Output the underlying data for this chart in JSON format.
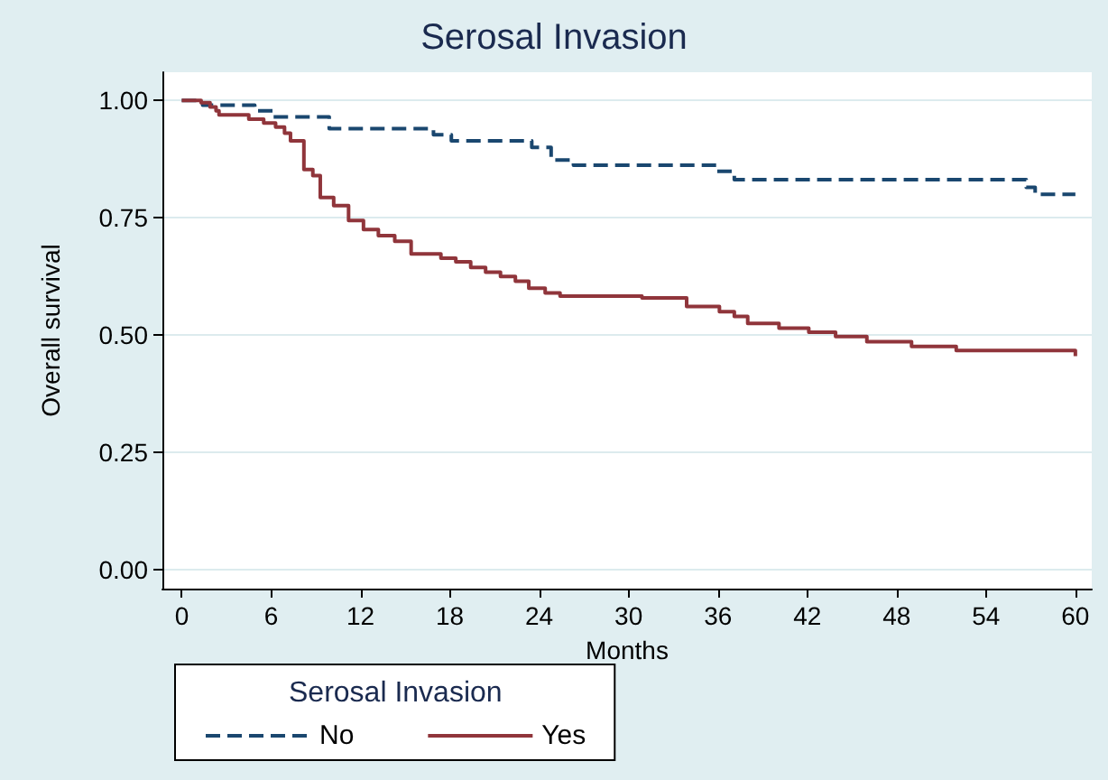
{
  "chart_data": {
    "type": "step",
    "title": "Serosal Invasion",
    "xlabel": "Months",
    "ylabel": "Overall survival",
    "legend_title": "Serosal Invasion",
    "xlim": [
      -1.3,
      61.1
    ],
    "xticks": [
      0,
      6,
      12,
      18,
      24,
      30,
      36,
      42,
      48,
      54,
      60
    ],
    "ylim": [
      -0.04,
      1.06
    ],
    "yticks": [
      {
        "value": 0,
        "label": "0.00"
      },
      {
        "value": 0.25,
        "label": "0.25"
      },
      {
        "value": 0.5,
        "label": "0.50"
      },
      {
        "value": 0.75,
        "label": "0.75"
      },
      {
        "value": 1,
        "label": "1.00"
      }
    ],
    "grid": "y",
    "legend": "bottom",
    "series": [
      {
        "name": "No",
        "color": "#1a476f",
        "line_style": "dashed",
        "x": [
          0,
          1.4,
          4.9,
          6.1,
          9.9,
          16.9,
          18.1,
          23.5,
          24.8,
          26.3,
          35.9,
          37.1,
          56.7,
          57.3,
          60
        ],
        "values": [
          1,
          0.99,
          0.978,
          0.965,
          0.94,
          0.927,
          0.914,
          0.9,
          0.873,
          0.862,
          0.849,
          0.831,
          0.815,
          0.8,
          0.8
        ]
      },
      {
        "name": "Yes",
        "color": "#90353b",
        "line_style": "solid",
        "x": [
          0,
          1.3,
          1.9,
          2.3,
          2.5,
          4.5,
          5.5,
          6.3,
          6.9,
          7.3,
          8.2,
          8.8,
          9.3,
          10.2,
          11.2,
          12.2,
          13.2,
          14.3,
          15.4,
          17.4,
          18.4,
          19.4,
          20.4,
          21.4,
          22.4,
          23.3,
          24.4,
          25.4,
          30.9,
          33.9,
          36.1,
          37.1,
          38,
          40.1,
          42.1,
          43.9,
          46,
          49,
          52,
          60
        ],
        "values": [
          1,
          0.995,
          0.986,
          0.978,
          0.969,
          0.96,
          0.952,
          0.943,
          0.93,
          0.914,
          0.853,
          0.84,
          0.793,
          0.776,
          0.744,
          0.725,
          0.712,
          0.7,
          0.673,
          0.664,
          0.656,
          0.644,
          0.634,
          0.625,
          0.615,
          0.6,
          0.59,
          0.583,
          0.579,
          0.561,
          0.55,
          0.54,
          0.525,
          0.515,
          0.506,
          0.497,
          0.486,
          0.476,
          0.467,
          0.455
        ]
      }
    ]
  }
}
